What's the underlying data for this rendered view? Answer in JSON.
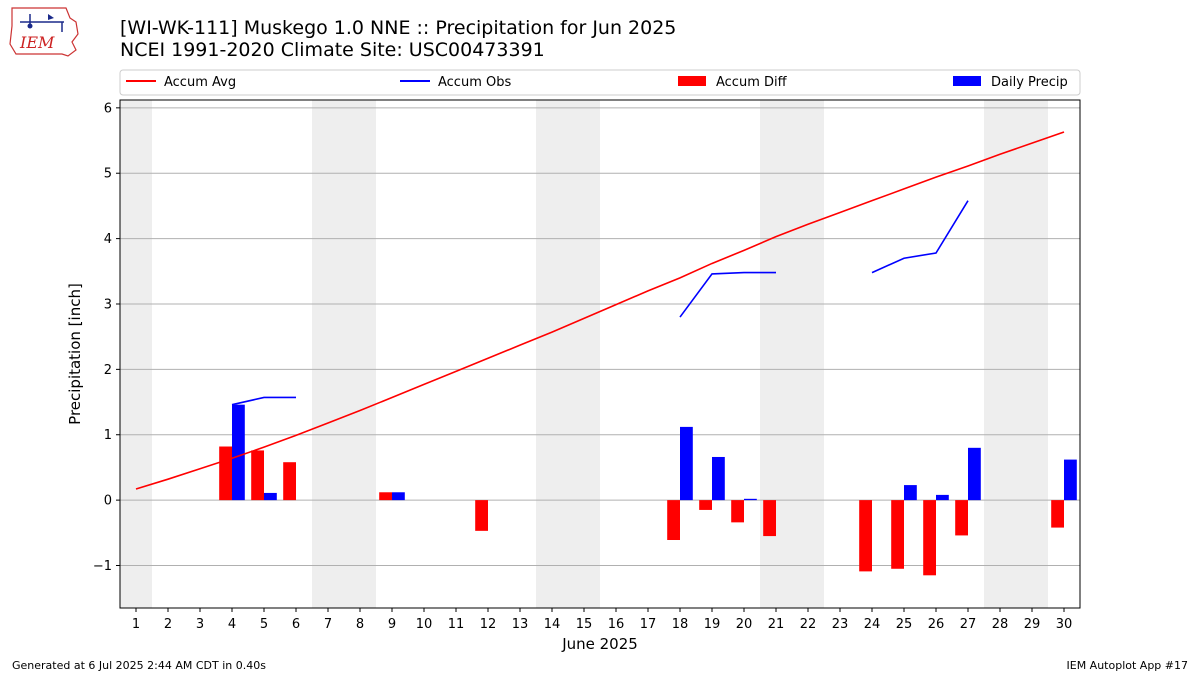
{
  "header": {
    "title_line1": "[WI-WK-111] Muskego 1.0 NNE :: Precipitation for Jun 2025",
    "title_line2": "NCEI 1991-2020 Climate Site: USC00473391",
    "logo_text": "IEM"
  },
  "footer": {
    "generated": "Generated at 6 Jul 2025 2:44 AM CDT in 0.40s",
    "app": "IEM Autoplot App #17"
  },
  "colors": {
    "accum_avg": "#ff0000",
    "accum_obs": "#0000ff",
    "accum_diff": "#ff0000",
    "daily_precip": "#0000ff",
    "weekend_shade": "#eeeeee",
    "grid": "#b0b0b0"
  },
  "chart_data": {
    "type": "bar",
    "xlabel": "June 2025",
    "ylabel": "Precipitation [inch]",
    "ylim": [
      -1.65,
      6.12
    ],
    "yticks": [
      -1,
      0,
      1,
      2,
      3,
      4,
      5,
      6
    ],
    "ytick_labels": [
      "−1",
      "0",
      "1",
      "2",
      "3",
      "4",
      "5",
      "6"
    ],
    "categories": [
      1,
      2,
      3,
      4,
      5,
      6,
      7,
      8,
      9,
      10,
      11,
      12,
      13,
      14,
      15,
      16,
      17,
      18,
      19,
      20,
      21,
      22,
      23,
      24,
      25,
      26,
      27,
      28,
      29,
      30
    ],
    "category_labels": [
      "1",
      "2",
      "3",
      "4",
      "5",
      "6",
      "7",
      "8",
      "9",
      "10",
      "11",
      "12",
      "13",
      "14",
      "15",
      "16",
      "17",
      "18",
      "19",
      "20",
      "21",
      "22",
      "23",
      "24",
      "25",
      "26",
      "27",
      "28",
      "29",
      "30"
    ],
    "weekend_shading": [
      [
        1,
        1
      ],
      [
        7,
        8
      ],
      [
        14,
        15
      ],
      [
        21,
        22
      ],
      [
        28,
        29
      ]
    ],
    "grid": "y",
    "legend_placement": "top, above plot",
    "legend": [
      {
        "label": "Accum Avg",
        "kind": "line",
        "color": "#ff0000"
      },
      {
        "label": "Accum Obs",
        "kind": "line",
        "color": "#0000ff"
      },
      {
        "label": "Accum Diff",
        "kind": "bar",
        "color": "#ff0000"
      },
      {
        "label": "Daily Precip",
        "kind": "bar",
        "color": "#0000ff"
      }
    ],
    "series": [
      {
        "name": "Accum Avg",
        "kind": "line",
        "color": "#ff0000",
        "values": [
          0.17,
          0.32,
          0.48,
          0.64,
          0.81,
          0.99,
          1.18,
          1.37,
          1.57,
          1.77,
          1.97,
          2.17,
          2.37,
          2.57,
          2.78,
          2.99,
          3.2,
          3.4,
          3.62,
          3.82,
          4.03,
          4.22,
          4.4,
          4.58,
          4.76,
          4.94,
          5.11,
          5.29,
          5.46,
          5.63
        ]
      },
      {
        "name": "Accum Obs",
        "kind": "line",
        "color": "#0000ff",
        "values": [
          null,
          null,
          null,
          1.46,
          1.57,
          1.57,
          null,
          null,
          null,
          null,
          null,
          null,
          null,
          null,
          null,
          null,
          null,
          2.8,
          3.46,
          3.48,
          3.48,
          null,
          null,
          3.48,
          3.7,
          3.78,
          4.58,
          null,
          null,
          null
        ]
      },
      {
        "name": "Accum Diff",
        "kind": "bar",
        "color": "#ff0000",
        "values": [
          0,
          0,
          0,
          0.82,
          0.76,
          0.58,
          0,
          0,
          0.12,
          0,
          0,
          -0.47,
          0,
          0,
          0,
          0,
          0,
          -0.61,
          -0.15,
          -0.34,
          -0.55,
          0,
          0,
          -1.09,
          -1.05,
          -1.15,
          -0.54,
          0,
          0,
          -0.42
        ]
      },
      {
        "name": "Daily Precip",
        "kind": "bar",
        "color": "#0000ff",
        "values": [
          0,
          0,
          0,
          1.46,
          0.11,
          0,
          0,
          0,
          0.12,
          0,
          0,
          0,
          0,
          0,
          0,
          0,
          0,
          1.12,
          0.66,
          0.02,
          0,
          0,
          0,
          0,
          0.23,
          0.08,
          0.8,
          0,
          0,
          0.62
        ]
      }
    ]
  }
}
